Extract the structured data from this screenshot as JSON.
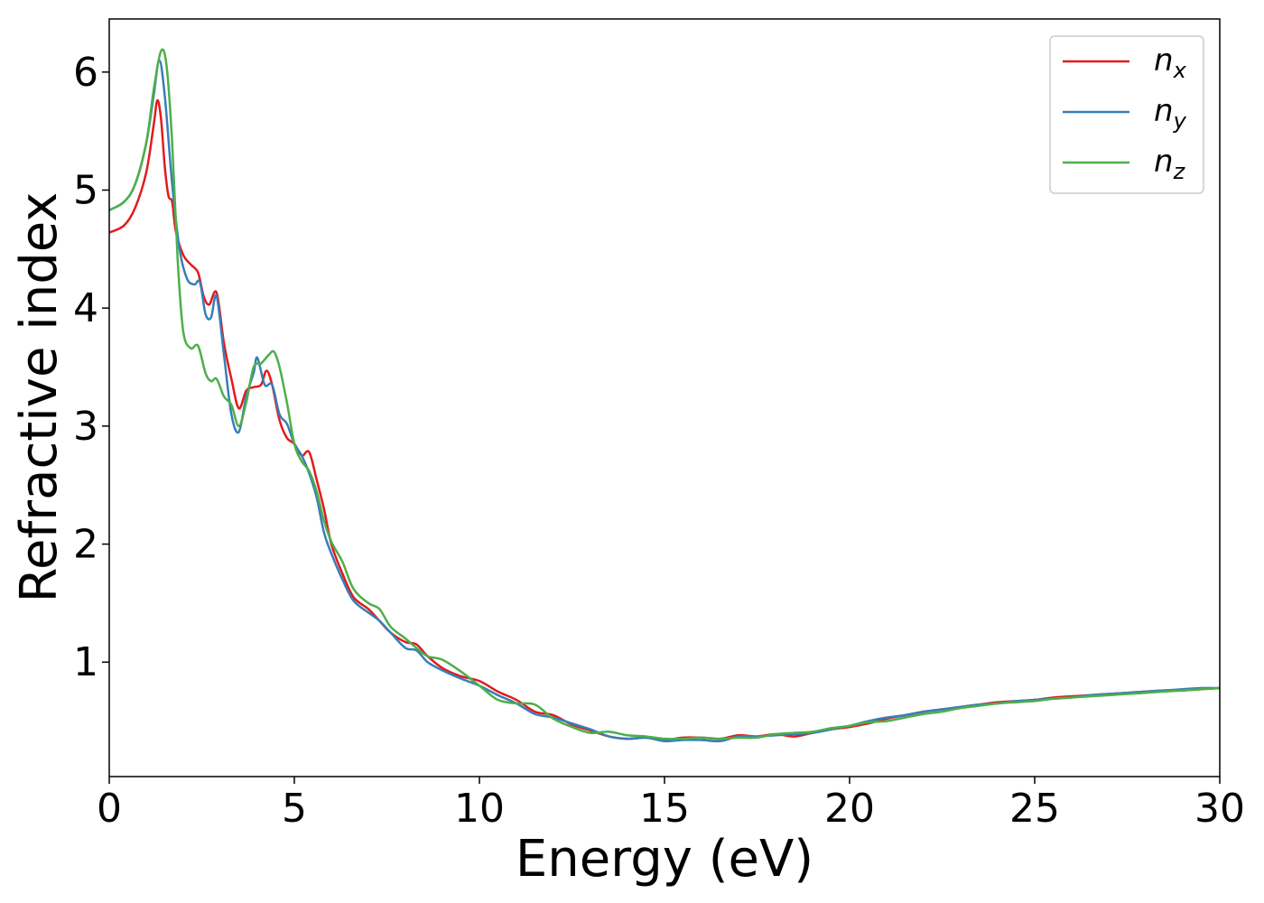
{
  "chart_data": {
    "type": "line",
    "title": "",
    "xlabel": "Energy (eV)",
    "ylabel": "Refractive index",
    "xlim": [
      0,
      30
    ],
    "ylim": [
      0.03,
      6.45
    ],
    "xticks": [
      0,
      5,
      10,
      15,
      20,
      25,
      30
    ],
    "xtick_labels": [
      "0",
      "5",
      "10",
      "15",
      "20",
      "25",
      "30"
    ],
    "yticks": [
      1,
      2,
      3,
      4,
      5,
      6
    ],
    "ytick_labels": [
      "1",
      "2",
      "3",
      "4",
      "5",
      "6"
    ],
    "grid": false,
    "legend_position": "top-right",
    "series": [
      {
        "name": "n_x",
        "label_base": "n",
        "label_sub": "x",
        "color": "#e41a1c",
        "x": [
          0,
          0.4,
          0.7,
          1.0,
          1.2,
          1.3,
          1.4,
          1.5,
          1.6,
          1.7,
          1.8,
          2.0,
          2.2,
          2.4,
          2.55,
          2.7,
          2.9,
          3.1,
          3.3,
          3.5,
          3.7,
          3.9,
          4.1,
          4.25,
          4.4,
          4.6,
          4.8,
          5.0,
          5.2,
          5.4,
          5.6,
          5.8,
          6.0,
          6.3,
          6.6,
          7.0,
          7.3,
          7.6,
          8.0,
          8.3,
          8.6,
          9.0,
          9.5,
          10.0,
          10.5,
          11.0,
          11.5,
          12.0,
          12.5,
          13.0,
          13.5,
          14.0,
          14.5,
          15.0,
          15.5,
          16.0,
          16.5,
          17.0,
          17.5,
          18.0,
          18.5,
          19.0,
          19.5,
          20.0,
          20.5,
          21.0,
          21.5,
          22.0,
          22.5,
          23.0,
          23.5,
          24.0,
          24.5,
          25.0,
          25.5,
          26.0,
          26.5,
          27.0,
          27.5,
          28.0,
          28.5,
          29.0,
          29.5,
          30.0
        ],
        "y": [
          4.64,
          4.7,
          4.85,
          5.15,
          5.55,
          5.76,
          5.6,
          5.2,
          4.95,
          4.9,
          4.65,
          4.45,
          4.37,
          4.3,
          4.1,
          4.03,
          4.13,
          3.7,
          3.4,
          3.15,
          3.3,
          3.33,
          3.35,
          3.47,
          3.35,
          3.05,
          2.9,
          2.85,
          2.75,
          2.78,
          2.55,
          2.3,
          2.0,
          1.75,
          1.55,
          1.45,
          1.35,
          1.25,
          1.17,
          1.15,
          1.05,
          0.95,
          0.88,
          0.84,
          0.75,
          0.68,
          0.58,
          0.55,
          0.47,
          0.42,
          0.37,
          0.35,
          0.36,
          0.34,
          0.36,
          0.36,
          0.35,
          0.38,
          0.37,
          0.39,
          0.37,
          0.4,
          0.43,
          0.45,
          0.48,
          0.52,
          0.55,
          0.58,
          0.6,
          0.62,
          0.64,
          0.66,
          0.67,
          0.68,
          0.7,
          0.71,
          0.72,
          0.73,
          0.74,
          0.75,
          0.76,
          0.76,
          0.77,
          0.78
        ]
      },
      {
        "name": "n_y",
        "label_base": "n",
        "label_sub": "y",
        "color": "#377eb8",
        "x": [
          0,
          0.4,
          0.7,
          1.0,
          1.2,
          1.35,
          1.5,
          1.7,
          1.9,
          2.1,
          2.3,
          2.45,
          2.6,
          2.75,
          2.9,
          3.1,
          3.3,
          3.5,
          3.7,
          3.9,
          4.0,
          4.2,
          4.4,
          4.6,
          4.8,
          5.0,
          5.2,
          5.4,
          5.6,
          5.8,
          6.0,
          6.3,
          6.6,
          7.0,
          7.3,
          7.6,
          8.0,
          8.3,
          8.6,
          9.0,
          9.5,
          10.0,
          10.5,
          11.0,
          11.5,
          12.0,
          12.5,
          13.0,
          13.5,
          14.0,
          14.5,
          15.0,
          15.5,
          16.0,
          16.5,
          17.0,
          17.5,
          18.0,
          18.5,
          19.0,
          19.5,
          20.0,
          20.5,
          21.0,
          21.5,
          22.0,
          22.5,
          23.0,
          23.5,
          24.0,
          24.5,
          25.0,
          25.5,
          26.0,
          26.5,
          27.0,
          27.5,
          28.0,
          28.5,
          29.0,
          29.5,
          30.0
        ],
        "y": [
          4.83,
          4.9,
          5.05,
          5.4,
          5.8,
          6.1,
          5.8,
          5.05,
          4.5,
          4.25,
          4.2,
          4.22,
          3.95,
          3.92,
          4.1,
          3.6,
          3.1,
          2.95,
          3.25,
          3.45,
          3.58,
          3.35,
          3.35,
          3.1,
          3.02,
          2.85,
          2.75,
          2.6,
          2.4,
          2.1,
          1.92,
          1.7,
          1.52,
          1.42,
          1.35,
          1.25,
          1.12,
          1.1,
          1.0,
          0.93,
          0.86,
          0.8,
          0.72,
          0.65,
          0.56,
          0.53,
          0.48,
          0.43,
          0.37,
          0.35,
          0.36,
          0.33,
          0.34,
          0.34,
          0.33,
          0.37,
          0.37,
          0.38,
          0.39,
          0.4,
          0.43,
          0.46,
          0.5,
          0.53,
          0.55,
          0.58,
          0.6,
          0.62,
          0.64,
          0.65,
          0.67,
          0.68,
          0.69,
          0.7,
          0.72,
          0.73,
          0.74,
          0.75,
          0.76,
          0.77,
          0.78,
          0.78
        ]
      },
      {
        "name": "n_z",
        "label_base": "n",
        "label_sub": "z",
        "color": "#4daf4a",
        "x": [
          0,
          0.4,
          0.7,
          1.0,
          1.2,
          1.4,
          1.55,
          1.7,
          1.85,
          2.0,
          2.2,
          2.4,
          2.6,
          2.75,
          2.9,
          3.1,
          3.3,
          3.5,
          3.7,
          3.9,
          4.1,
          4.3,
          4.45,
          4.6,
          4.8,
          5.0,
          5.2,
          5.4,
          5.6,
          5.8,
          6.0,
          6.3,
          6.6,
          7.0,
          7.3,
          7.6,
          8.0,
          8.3,
          8.6,
          9.0,
          9.5,
          10.0,
          10.5,
          11.0,
          11.5,
          12.0,
          12.5,
          13.0,
          13.5,
          14.0,
          14.5,
          15.0,
          15.5,
          16.0,
          16.5,
          17.0,
          17.5,
          18.0,
          18.5,
          19.0,
          19.5,
          20.0,
          20.5,
          21.0,
          21.5,
          22.0,
          22.5,
          23.0,
          23.5,
          24.0,
          24.5,
          25.0,
          25.5,
          26.0,
          26.5,
          27.0,
          27.5,
          28.0,
          28.5,
          29.0,
          29.5,
          30.0
        ],
        "y": [
          4.83,
          4.9,
          5.05,
          5.4,
          5.85,
          6.18,
          6.05,
          5.4,
          4.4,
          3.8,
          3.66,
          3.68,
          3.45,
          3.38,
          3.4,
          3.25,
          3.18,
          3.0,
          3.2,
          3.5,
          3.53,
          3.6,
          3.63,
          3.5,
          3.2,
          2.85,
          2.7,
          2.62,
          2.45,
          2.2,
          2.02,
          1.85,
          1.62,
          1.5,
          1.45,
          1.3,
          1.2,
          1.12,
          1.05,
          1.02,
          0.92,
          0.8,
          0.68,
          0.65,
          0.64,
          0.52,
          0.45,
          0.4,
          0.41,
          0.38,
          0.37,
          0.35,
          0.35,
          0.36,
          0.35,
          0.36,
          0.36,
          0.39,
          0.4,
          0.41,
          0.44,
          0.46,
          0.49,
          0.5,
          0.53,
          0.56,
          0.58,
          0.61,
          0.63,
          0.65,
          0.66,
          0.67,
          0.69,
          0.7,
          0.71,
          0.72,
          0.73,
          0.74,
          0.75,
          0.76,
          0.77,
          0.78
        ]
      }
    ]
  }
}
